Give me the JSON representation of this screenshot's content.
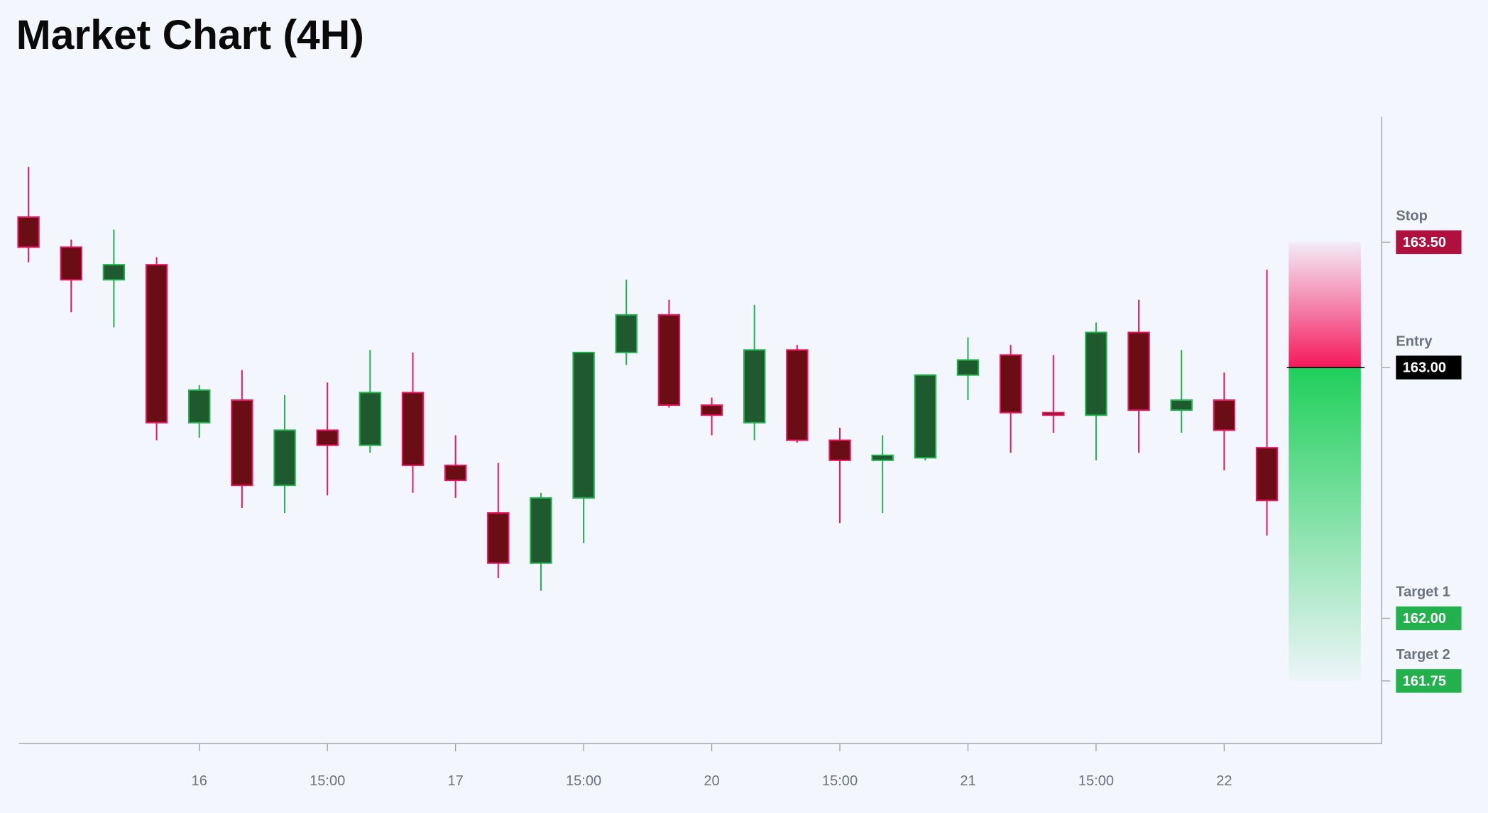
{
  "chart_data": {
    "type": "candlestick",
    "title": "Market Chart (4H)",
    "categories": [
      null,
      null,
      null,
      null,
      "16",
      null,
      null,
      "15:00",
      null,
      null,
      "17",
      null,
      null,
      "15:00",
      null,
      null,
      "20",
      null,
      null,
      "15:00",
      null,
      null,
      "21",
      null,
      null,
      "15:00",
      null,
      null,
      "22",
      null
    ],
    "open": [
      163.6,
      163.48,
      163.35,
      163.41,
      162.78,
      162.87,
      162.53,
      162.75,
      162.69,
      162.9,
      162.61,
      162.42,
      162.22,
      162.48,
      163.06,
      163.21,
      162.85,
      162.78,
      163.07,
      162.71,
      162.63,
      162.64,
      162.97,
      163.05,
      162.82,
      162.81,
      163.14,
      162.83,
      162.87,
      162.68
    ],
    "high": [
      163.8,
      163.51,
      163.55,
      163.44,
      162.93,
      162.99,
      162.89,
      162.94,
      163.07,
      163.06,
      162.73,
      162.62,
      162.5,
      163.06,
      163.35,
      163.27,
      162.88,
      163.25,
      163.09,
      162.76,
      162.73,
      162.97,
      163.12,
      163.09,
      163.05,
      163.18,
      163.27,
      163.07,
      162.98,
      163.39
    ],
    "low": [
      163.42,
      163.22,
      163.16,
      162.71,
      162.72,
      162.44,
      162.42,
      162.49,
      162.66,
      162.5,
      162.48,
      162.16,
      162.11,
      162.3,
      163.01,
      162.84,
      162.73,
      162.71,
      162.7,
      162.38,
      162.42,
      162.63,
      162.87,
      162.66,
      162.74,
      162.63,
      162.66,
      162.74,
      162.59,
      162.33
    ],
    "close": [
      163.48,
      163.35,
      163.41,
      162.78,
      162.91,
      162.53,
      162.75,
      162.69,
      162.9,
      162.61,
      162.55,
      162.22,
      162.48,
      163.06,
      163.21,
      162.85,
      162.81,
      163.07,
      162.71,
      162.63,
      162.65,
      162.97,
      163.03,
      162.82,
      162.81,
      163.14,
      162.83,
      162.87,
      162.75,
      162.47
    ],
    "up_color": "#22b14c",
    "down_color": "#e8175d",
    "ylim": [
      161.5,
      164.0
    ],
    "levels": [
      {
        "name": "Stop",
        "value": 163.5,
        "value_label": "163.50",
        "color": "#b0103e"
      },
      {
        "name": "Entry",
        "value": 163.0,
        "value_label": "163.00",
        "color": "#000000"
      },
      {
        "name": "Target 1",
        "value": 162.0,
        "value_label": "162.00",
        "color": "#22b14c"
      },
      {
        "name": "Target 2",
        "value": 161.75,
        "value_label": "161.75",
        "color": "#22b14c"
      }
    ]
  }
}
